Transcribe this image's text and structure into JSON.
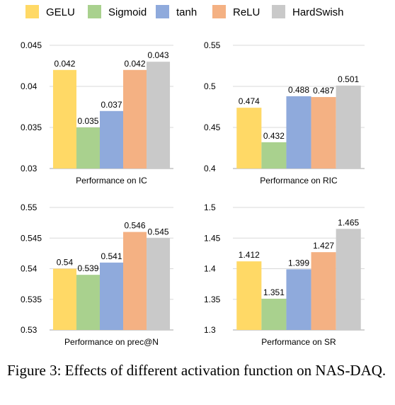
{
  "legend": [
    {
      "name": "GELU",
      "color": "#FFD966"
    },
    {
      "name": "Sigmoid",
      "color": "#A9D18E"
    },
    {
      "name": "tanh",
      "color": "#8FAADC"
    },
    {
      "name": "ReLU",
      "color": "#F4B183"
    },
    {
      "name": "HardSwish",
      "color": "#C9C9C9"
    }
  ],
  "chart_data": [
    {
      "type": "bar",
      "title": "Performance on IC",
      "categories": [
        "GELU",
        "Sigmoid",
        "tanh",
        "ReLU",
        "HardSwish"
      ],
      "values": [
        0.042,
        0.035,
        0.037,
        0.042,
        0.043
      ],
      "value_labels": [
        "0.042",
        "0.035",
        "0.037",
        "0.042",
        "0.043"
      ],
      "ylim": [
        0.03,
        0.045
      ],
      "yticks": [
        "0.03",
        "0.035",
        "0.04",
        "0.045"
      ],
      "grid": true
    },
    {
      "type": "bar",
      "title": "Performance on RIC",
      "categories": [
        "GELU",
        "Sigmoid",
        "tanh",
        "ReLU",
        "HardSwish"
      ],
      "values": [
        0.474,
        0.432,
        0.488,
        0.487,
        0.501
      ],
      "value_labels": [
        "0.474",
        "0.432",
        "0.488",
        "0.487",
        "0.501"
      ],
      "ylim": [
        0.4,
        0.55
      ],
      "yticks": [
        "0.4",
        "0.45",
        "0.5",
        "0.55"
      ],
      "grid": true
    },
    {
      "type": "bar",
      "title": "Performance on prec@N",
      "categories": [
        "GELU",
        "Sigmoid",
        "tanh",
        "ReLU",
        "HardSwish"
      ],
      "values": [
        0.54,
        0.539,
        0.541,
        0.546,
        0.545
      ],
      "value_labels": [
        "0.54",
        "0.539",
        "0.541",
        "0.546",
        "0.545"
      ],
      "ylim": [
        0.53,
        0.55
      ],
      "yticks": [
        "0.53",
        "0.535",
        "0.54",
        "0.545",
        "0.55"
      ],
      "grid": true
    },
    {
      "type": "bar",
      "title": "Performance on SR",
      "categories": [
        "GELU",
        "Sigmoid",
        "tanh",
        "ReLU",
        "HardSwish"
      ],
      "values": [
        1.412,
        1.351,
        1.399,
        1.427,
        1.465
      ],
      "value_labels": [
        "1.412",
        "1.351",
        "1.399",
        "1.427",
        "1.465"
      ],
      "ylim": [
        1.3,
        1.5
      ],
      "yticks": [
        "1.3",
        "1.35",
        "1.4",
        "1.45",
        "1.5"
      ],
      "grid": true
    }
  ],
  "caption": "Figure 3: Effects of different activation function on NAS-DAQ."
}
